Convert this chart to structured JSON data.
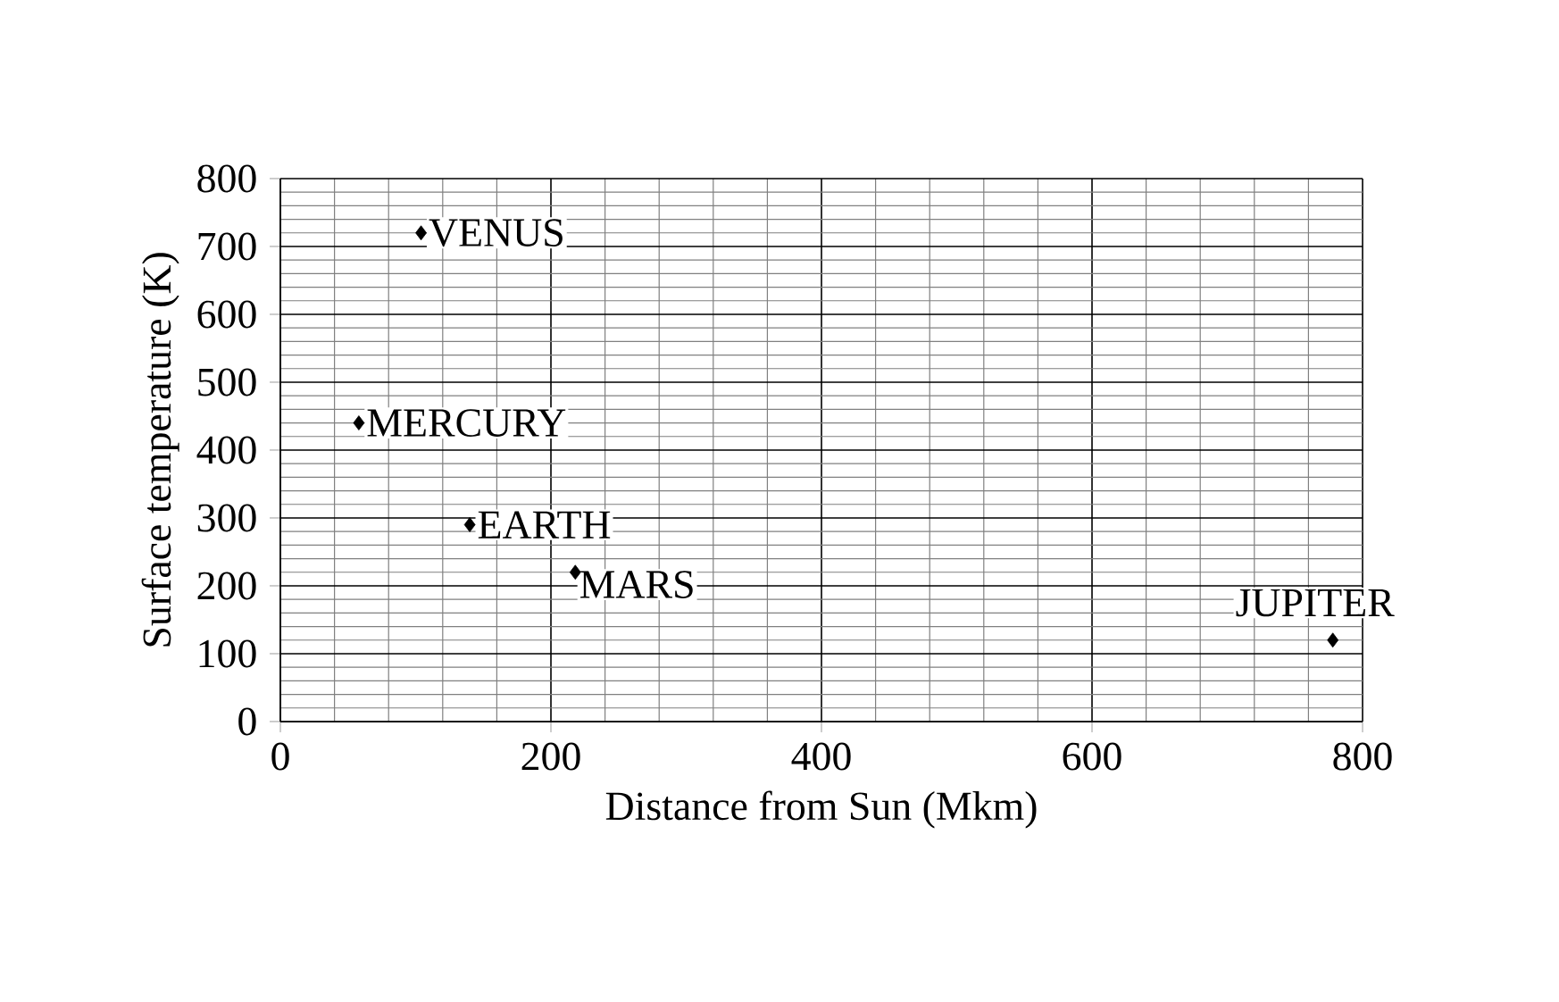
{
  "chart_data": {
    "type": "scatter",
    "xlabel": "Distance from Sun (Mkm)",
    "ylabel": "Surface temperature (K)",
    "x": [
      58,
      104,
      140,
      218,
      778
    ],
    "values": [
      440,
      720,
      290,
      220,
      120
    ],
    "color": "#000000",
    "marker": "diamond",
    "grid": true,
    "xlim": [
      0,
      800
    ],
    "ylim": [
      0,
      800
    ],
    "xticks": [
      0,
      200,
      400,
      600,
      800
    ],
    "yticks": [
      0,
      100,
      200,
      300,
      400,
      500,
      600,
      700,
      800
    ],
    "annotations": [
      {
        "text": "MERCURY",
        "x": 58,
        "y": 440
      },
      {
        "text": "VENUS",
        "x": 104,
        "y": 720
      },
      {
        "text": "EARTH",
        "x": 140,
        "y": 290
      },
      {
        "text": "MARS",
        "x": 218,
        "y": 220
      },
      {
        "text": "JUPITER",
        "x": 778,
        "y": 120
      }
    ]
  }
}
